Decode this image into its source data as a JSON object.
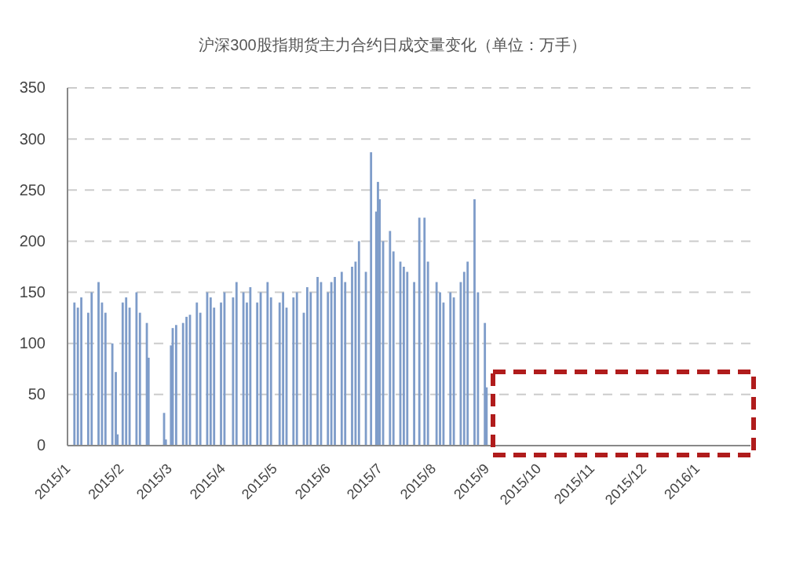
{
  "chart_data": {
    "type": "bar",
    "title": "沪深300股指期货主力合约日成交量变化（单位：万手）",
    "x": [
      "2015-01-05",
      "2015-01-07",
      "2015-01-09",
      "2015-01-13",
      "2015-01-15",
      "2015-01-19",
      "2015-01-21",
      "2015-01-23",
      "2015-01-27",
      "2015-01-29",
      "2015-01-30",
      "2015-02-02",
      "2015-02-04",
      "2015-02-06",
      "2015-02-10",
      "2015-02-12",
      "2015-02-16",
      "2015-02-17",
      "2015-02-26",
      "2015-02-27",
      "2015-03-02",
      "2015-03-03",
      "2015-03-05",
      "2015-03-09",
      "2015-03-11",
      "2015-03-13",
      "2015-03-17",
      "2015-03-19",
      "2015-03-23",
      "2015-03-25",
      "2015-03-27",
      "2015-03-31",
      "2015-04-02",
      "2015-04-07",
      "2015-04-09",
      "2015-04-13",
      "2015-04-15",
      "2015-04-17",
      "2015-04-21",
      "2015-04-23",
      "2015-04-27",
      "2015-04-29",
      "2015-05-04",
      "2015-05-06",
      "2015-05-08",
      "2015-05-12",
      "2015-05-14",
      "2015-05-18",
      "2015-05-20",
      "2015-05-22",
      "2015-05-26",
      "2015-05-28",
      "2015-06-01",
      "2015-06-03",
      "2015-06-05",
      "2015-06-09",
      "2015-06-11",
      "2015-06-15",
      "2015-06-17",
      "2015-06-19",
      "2015-06-23",
      "2015-06-26",
      "2015-06-29",
      "2015-06-30",
      "2015-07-01",
      "2015-07-03",
      "2015-07-07",
      "2015-07-09",
      "2015-07-13",
      "2015-07-15",
      "2015-07-17",
      "2015-07-21",
      "2015-07-24",
      "2015-07-27",
      "2015-07-29",
      "2015-08-03",
      "2015-08-05",
      "2015-08-07",
      "2015-08-11",
      "2015-08-13",
      "2015-08-17",
      "2015-08-19",
      "2015-08-21",
      "2015-08-25",
      "2015-08-27",
      "2015-08-31",
      "2015-09-01"
    ],
    "values": [
      140,
      135,
      145,
      130,
      150,
      160,
      140,
      130,
      100,
      72,
      11,
      140,
      145,
      135,
      150,
      130,
      120,
      86,
      32,
      6,
      98,
      115,
      118,
      120,
      126,
      128,
      140,
      130,
      150,
      145,
      135,
      140,
      150,
      145,
      160,
      150,
      140,
      155,
      140,
      150,
      160,
      145,
      140,
      150,
      135,
      145,
      150,
      130,
      155,
      150,
      165,
      160,
      150,
      160,
      165,
      170,
      160,
      175,
      180,
      200,
      170,
      287,
      229,
      258,
      241,
      200,
      210,
      190,
      180,
      175,
      170,
      160,
      223,
      223,
      180,
      160,
      150,
      140,
      150,
      145,
      160,
      170,
      180,
      241,
      150,
      120,
      57
    ],
    "color": "#7e9cc9",
    "xlim": [
      "2015-01-01",
      "2016-02-01"
    ],
    "xticks": [
      {
        "value": "2015-01",
        "label": "2015/1"
      },
      {
        "value": "2015-02",
        "label": "2015/2"
      },
      {
        "value": "2015-03",
        "label": "2015/3"
      },
      {
        "value": "2015-04",
        "label": "2015/4"
      },
      {
        "value": "2015-05",
        "label": "2015/5"
      },
      {
        "value": "2015-06",
        "label": "2015/6"
      },
      {
        "value": "2015-07",
        "label": "2015/7"
      },
      {
        "value": "2015-08",
        "label": "2015/8"
      },
      {
        "value": "2015-09",
        "label": "2015/9"
      },
      {
        "value": "2015-10",
        "label": "2015/10"
      },
      {
        "value": "2015-11",
        "label": "2015/11"
      },
      {
        "value": "2015-12",
        "label": "2015/12"
      },
      {
        "value": "2016-01",
        "label": "2016/1"
      }
    ],
    "ylim": [
      0,
      350
    ],
    "yticks": [
      0,
      50,
      100,
      150,
      200,
      250,
      300,
      350
    ],
    "grid": "y"
  }
}
